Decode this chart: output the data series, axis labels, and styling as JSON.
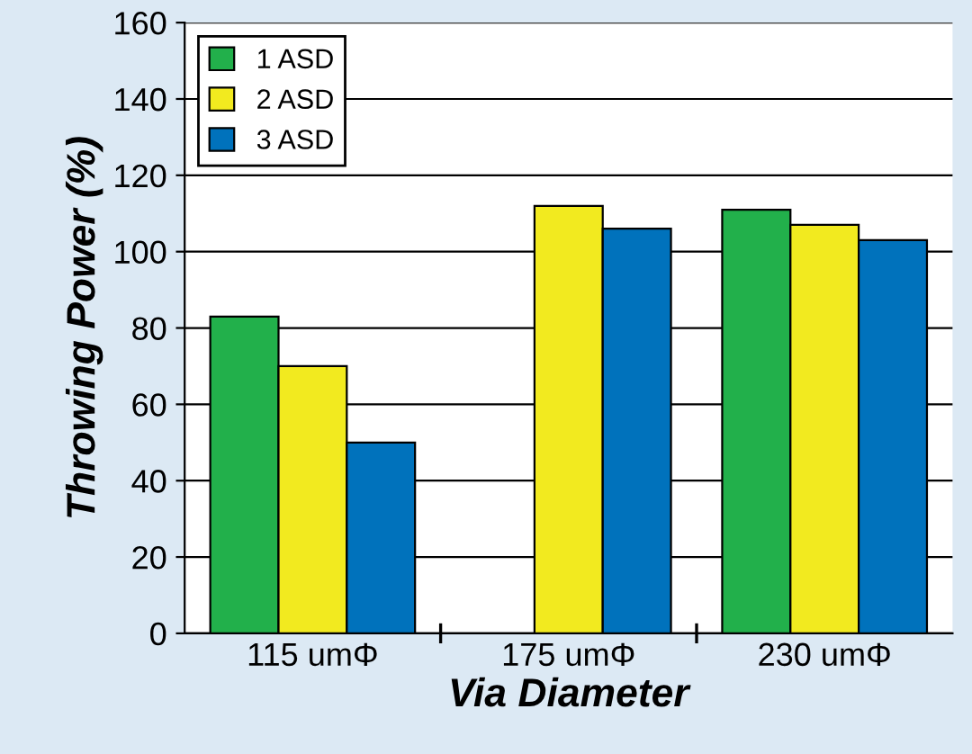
{
  "chart_data": {
    "type": "bar",
    "xlabel": "Via Diameter",
    "ylabel": "Throwing Power (%)",
    "categories": [
      "115 umΦ",
      "175 umΦ",
      "230 umΦ"
    ],
    "series": [
      {
        "name": "1 ASD",
        "color": "#22b04b",
        "values": [
          83,
          null,
          111
        ]
      },
      {
        "name": "2 ASD",
        "color": "#f2ea1f",
        "values": [
          70,
          112,
          107
        ]
      },
      {
        "name": "3 ASD",
        "color": "#0072bc",
        "values": [
          50,
          106,
          103
        ]
      }
    ],
    "ylim": [
      0,
      160
    ],
    "yticks": [
      0,
      20,
      40,
      60,
      80,
      100,
      120,
      140,
      160
    ],
    "grid": "y",
    "legend": "top left"
  }
}
